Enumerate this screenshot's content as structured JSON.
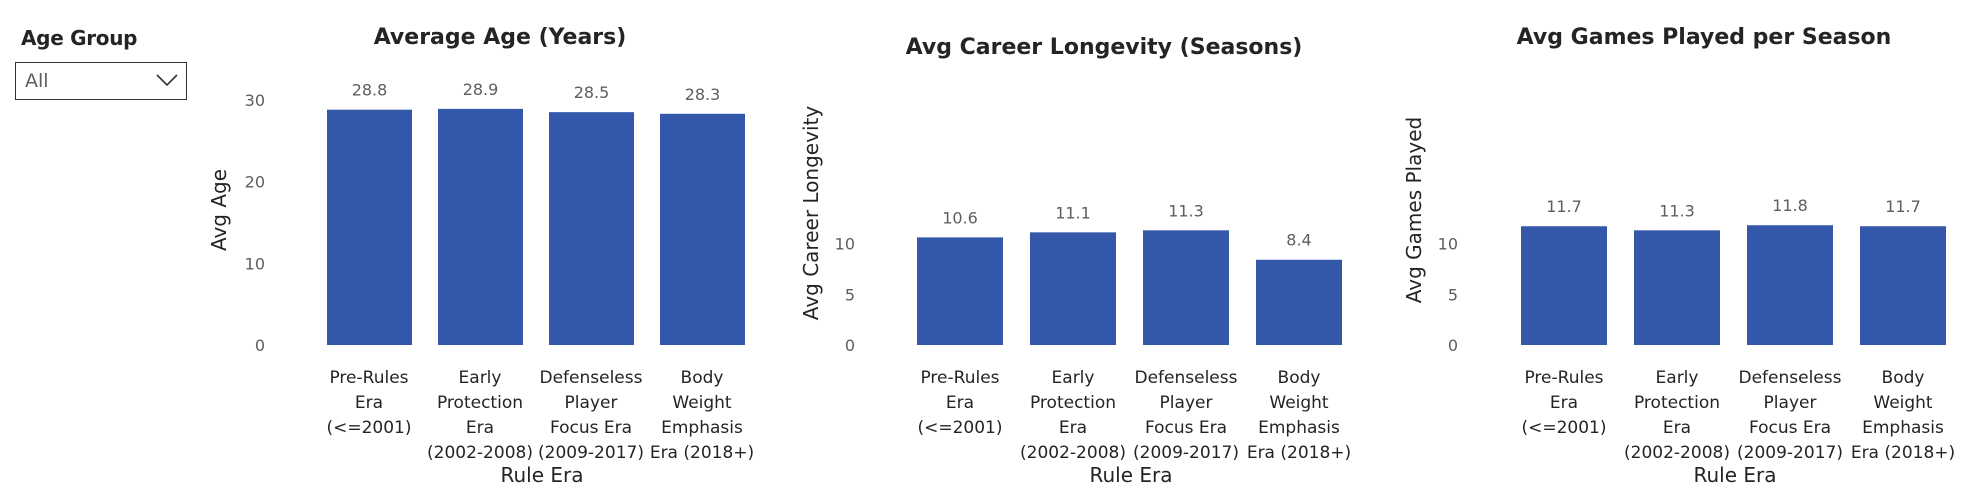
{
  "slicer": {
    "title": "Age Group",
    "selected": "All",
    "icon": "chevron-down-icon"
  },
  "colors": {
    "bar": "#3358aa"
  },
  "chart_data": [
    {
      "type": "bar",
      "title": "Average Age (Years)",
      "xlabel": "Rule Era",
      "ylabel": "Avg Age",
      "ylim": [
        0,
        30
      ],
      "yticks": [
        "0",
        "10",
        "20",
        "30"
      ],
      "grid": false,
      "categories": [
        [
          "Pre-Rules",
          "Era",
          "(<=2001)"
        ],
        [
          "Early",
          "Protection",
          "Era",
          "(2002-2008)"
        ],
        [
          "Defenseless",
          "Player",
          "Focus Era",
          "(2009-2017)"
        ],
        [
          "Body",
          "Weight",
          "Emphasis",
          "Era (2018+)"
        ]
      ],
      "values": [
        28.8,
        28.9,
        28.5,
        28.3
      ],
      "data_labels": [
        "28.8",
        "28.9",
        "28.5",
        "28.3"
      ]
    },
    {
      "type": "bar",
      "title": "Avg Career Longevity (Seasons)",
      "xlabel": "Rule Era",
      "ylabel": "Avg Career Longevity",
      "ylim": [
        0,
        10
      ],
      "yticks": [
        "0",
        "5",
        "10"
      ],
      "grid": false,
      "categories": [
        [
          "Pre-Rules",
          "Era",
          "(<=2001)"
        ],
        [
          "Early",
          "Protection",
          "Era",
          "(2002-2008)"
        ],
        [
          "Defenseless",
          "Player",
          "Focus Era",
          "(2009-2017)"
        ],
        [
          "Body",
          "Weight",
          "Emphasis",
          "Era (2018+)"
        ]
      ],
      "values": [
        10.6,
        11.1,
        11.3,
        8.4
      ],
      "data_labels": [
        "10.6",
        "11.1",
        "11.3",
        "8.4"
      ]
    },
    {
      "type": "bar",
      "title": "Avg Games Played per Season",
      "xlabel": "Rule Era",
      "ylabel": "Avg Games Played",
      "ylim": [
        0,
        10
      ],
      "yticks": [
        "0",
        "5",
        "10"
      ],
      "grid": false,
      "categories": [
        [
          "Pre-Rules",
          "Era",
          "(<=2001)"
        ],
        [
          "Early",
          "Protection",
          "Era",
          "(2002-2008)"
        ],
        [
          "Defenseless",
          "Player",
          "Focus Era",
          "(2009-2017)"
        ],
        [
          "Body",
          "Weight",
          "Emphasis",
          "Era (2018+)"
        ]
      ],
      "values": [
        11.7,
        11.3,
        11.8,
        11.7
      ],
      "data_labels": [
        "11.7",
        "11.3",
        "11.8",
        "11.7"
      ]
    }
  ]
}
